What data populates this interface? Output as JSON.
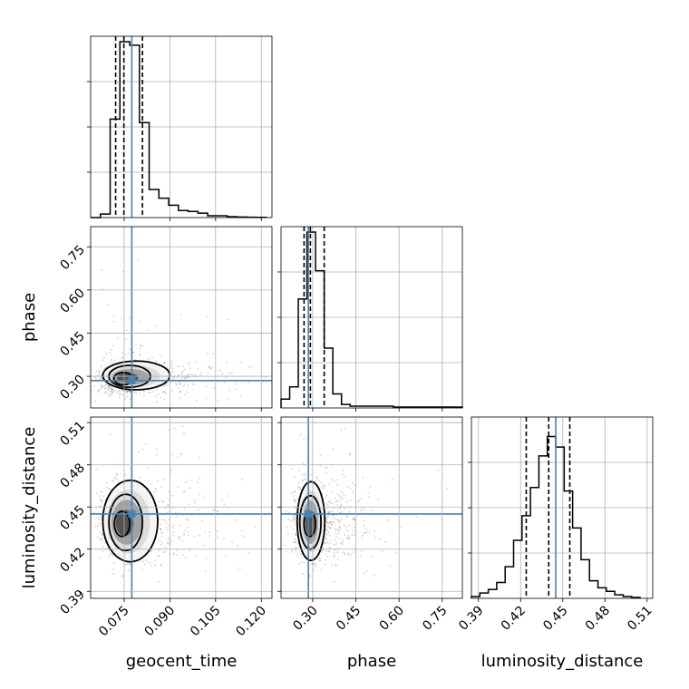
{
  "chart_data": {
    "type": "corner",
    "parameters": [
      "geocent_time",
      "phase",
      "luminosity_distance"
    ],
    "axis_labels": {
      "geocent_time": "geocent_time",
      "phase": "phase",
      "luminosity_distance": "luminosity_distance"
    },
    "ranges": {
      "geocent_time": [
        0.064,
        0.1235
      ],
      "phase": [
        0.19,
        0.82
      ],
      "luminosity_distance": [
        0.385,
        0.514
      ]
    },
    "ticks": {
      "geocent_time": [
        "0.075",
        "0.090",
        "0.105",
        "0.120"
      ],
      "phase": [
        "0.30",
        "0.45",
        "0.60",
        "0.75"
      ],
      "luminosity_distance": [
        "0.39",
        "0.42",
        "0.45",
        "0.48",
        "0.51"
      ]
    },
    "truths": {
      "geocent_time": 0.0775,
      "phase": 0.285,
      "luminosity_distance": 0.445
    },
    "truth_color": "#4682b4",
    "quantiles": {
      "geocent_time": [
        0.0722,
        0.0749,
        0.081
      ],
      "phase": [
        0.27,
        0.292,
        0.34
      ],
      "luminosity_distance": [
        0.424,
        0.44,
        0.455
      ]
    },
    "histograms": {
      "geocent_time": {
        "edges": [
          0.064,
          0.0672,
          0.0704,
          0.0736,
          0.0768,
          0.08,
          0.0832,
          0.0864,
          0.0896,
          0.0928,
          0.096,
          0.0992,
          0.1024,
          0.1056,
          0.1088,
          0.112,
          0.1152,
          0.1184,
          0.1216
        ],
        "counts": [
          0,
          0.02,
          0.56,
          1.0,
          0.98,
          0.54,
          0.16,
          0.11,
          0.07,
          0.04,
          0.035,
          0.025,
          0.01,
          0.01,
          0.005,
          0.003,
          0.002,
          0.001
        ]
      },
      "phase": {
        "edges": [
          0.19,
          0.22,
          0.25,
          0.28,
          0.31,
          0.34,
          0.37,
          0.4,
          0.43,
          0.46,
          0.49,
          0.52,
          0.55,
          0.58,
          0.61,
          0.64,
          0.67,
          0.7,
          0.73,
          0.76,
          0.79,
          0.82
        ],
        "counts": [
          0.05,
          0.12,
          0.62,
          1.0,
          0.78,
          0.34,
          0.08,
          0.02,
          0.01,
          0.01,
          0.01,
          0.01,
          0.01,
          0.005,
          0.005,
          0.005,
          0.005,
          0.005,
          0.005,
          0.005,
          0.005
        ]
      },
      "luminosity_distance": {
        "edges": [
          0.385,
          0.391,
          0.397,
          0.403,
          0.409,
          0.415,
          0.421,
          0.427,
          0.433,
          0.439,
          0.445,
          0.451,
          0.457,
          0.463,
          0.469,
          0.475,
          0.481,
          0.487,
          0.493,
          0.499,
          0.505
        ],
        "counts": [
          0.01,
          0.03,
          0.05,
          0.09,
          0.18,
          0.33,
          0.47,
          0.63,
          0.81,
          0.92,
          0.86,
          0.61,
          0.4,
          0.22,
          0.1,
          0.06,
          0.04,
          0.02,
          0.01,
          0.005
        ]
      }
    },
    "distributions_2d": [
      {
        "x": "geocent_time",
        "y": "phase",
        "peak": [
          0.0745,
          0.29
        ],
        "spread": [
          0.003,
          0.022
        ],
        "contours": [
          {
            "level": 0.39,
            "center": [
              0.0748,
              0.292
            ],
            "radii": [
              0.0032,
              0.021
            ]
          },
          {
            "level": 0.86,
            "center": [
              0.0768,
              0.3
            ],
            "radii": [
              0.0068,
              0.038
            ]
          },
          {
            "level": 0.99,
            "center": [
              0.079,
              0.303
            ],
            "radii": [
              0.011,
              0.05
            ]
          }
        ]
      },
      {
        "x": "geocent_time",
        "y": "luminosity_distance",
        "peak": [
          0.074,
          0.438
        ],
        "spread": [
          0.003,
          0.011
        ],
        "contours": [
          {
            "level": 0.39,
            "center": [
              0.0743,
              0.438
            ],
            "radii": [
              0.0025,
              0.009
            ]
          },
          {
            "level": 0.86,
            "center": [
              0.0755,
              0.439
            ],
            "radii": [
              0.0055,
              0.02
            ]
          },
          {
            "level": 0.99,
            "center": [
              0.077,
              0.44
            ],
            "radii": [
              0.009,
              0.029
            ]
          }
        ]
      },
      {
        "x": "phase",
        "y": "luminosity_distance",
        "peak": [
          0.285,
          0.438
        ],
        "spread": [
          0.022,
          0.011
        ],
        "contours": [
          {
            "level": 0.39,
            "center": [
              0.29,
              0.438
            ],
            "radii": [
              0.02,
              0.009
            ]
          },
          {
            "level": 0.86,
            "center": [
              0.292,
              0.439
            ],
            "radii": [
              0.037,
              0.019
            ]
          },
          {
            "level": 0.99,
            "center": [
              0.294,
              0.44
            ],
            "radii": [
              0.048,
              0.028
            ]
          }
        ]
      }
    ],
    "grid": true,
    "legend": "none"
  }
}
